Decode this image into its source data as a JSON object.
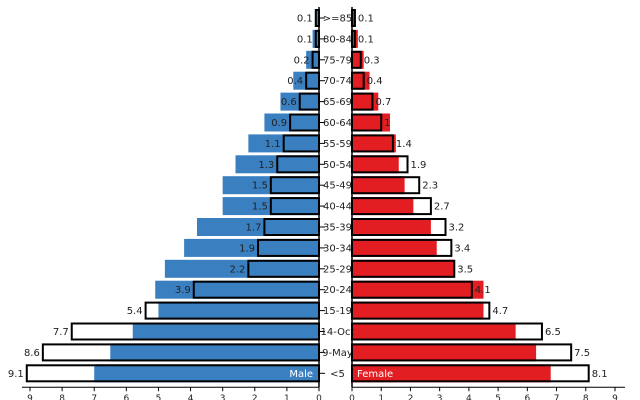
{
  "chart_data": {
    "type": "bar",
    "categories": [
      ">=85",
      "80-84",
      "75-79",
      "70-74",
      "65-69",
      "60-64",
      "55-59",
      "50-54",
      "45-49",
      "40-44",
      "35-39",
      "30-34",
      "25-29",
      "20-24",
      "15-19",
      "14-Oct",
      "9-May",
      "<5"
    ],
    "series": [
      {
        "name": "Male",
        "side": "left",
        "values": [
          0.1,
          0.2,
          0.4,
          0.8,
          1.2,
          1.7,
          2.2,
          2.6,
          3.0,
          3.0,
          3.8,
          4.2,
          4.8,
          5.1,
          5.0,
          5.8,
          6.5,
          7.0
        ],
        "labels": [
          0.1,
          0.1,
          0.2,
          0.4,
          0.6,
          0.9,
          1.1,
          1.3,
          1.5,
          1.5,
          1.7,
          1.9,
          2.2,
          3.9,
          5.4,
          7.7,
          8.6,
          9.1
        ],
        "colors": {
          "fill": "#3a7fc0"
        }
      },
      {
        "name": "Female",
        "side": "right",
        "values": [
          0.1,
          0.2,
          0.4,
          0.6,
          0.9,
          1.3,
          1.5,
          1.6,
          1.8,
          2.1,
          2.7,
          2.9,
          3.5,
          4.5,
          4.5,
          5.6,
          6.3,
          6.8
        ],
        "labels": [
          0.1,
          0.1,
          0.3,
          0.4,
          0.7,
          1.0,
          1.4,
          1.9,
          2.3,
          2.7,
          3.2,
          3.4,
          3.5,
          4.1,
          4.7,
          6.5,
          7.5,
          8.1
        ],
        "colors": {
          "fill": "#e31e22"
        }
      }
    ],
    "xlim": [
      0,
      9
    ],
    "x_ticks": [
      0,
      1,
      2,
      3,
      4,
      5,
      6,
      7,
      8,
      9
    ],
    "title": "",
    "xlabel": "",
    "ylabel": "",
    "legend": [
      "Male",
      "Female"
    ],
    "grid": false
  }
}
